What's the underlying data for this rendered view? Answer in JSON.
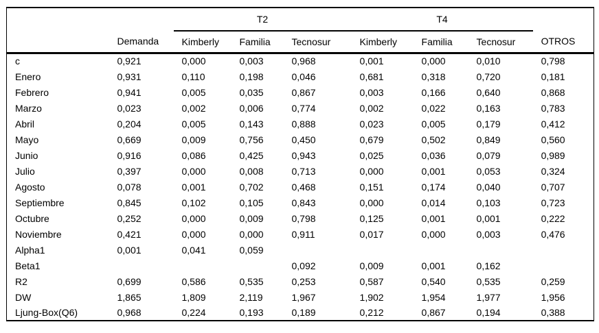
{
  "table": {
    "groups": [
      {
        "label": "T2"
      },
      {
        "label": "T4"
      }
    ],
    "columns": [
      "",
      "Demanda",
      "Kimberly",
      "Familia",
      "Tecnosur",
      "Kimberly",
      "Familia",
      "Tecnosur",
      "OTROS"
    ],
    "rows": [
      {
        "label": "c",
        "values": [
          "0,921",
          "0,000",
          "0,003",
          "0,968",
          "0,001",
          "0,000",
          "0,010",
          "0,798"
        ]
      },
      {
        "label": "Enero",
        "values": [
          "0,931",
          "0,110",
          "0,198",
          "0,046",
          "0,681",
          "0,318",
          "0,720",
          "0,181"
        ]
      },
      {
        "label": "Febrero",
        "values": [
          "0,941",
          "0,005",
          "0,035",
          "0,867",
          "0,003",
          "0,166",
          "0,640",
          "0,868"
        ]
      },
      {
        "label": "Marzo",
        "values": [
          "0,023",
          "0,002",
          "0,006",
          "0,774",
          "0,002",
          "0,022",
          "0,163",
          "0,783"
        ]
      },
      {
        "label": "Abril",
        "values": [
          "0,204",
          "0,005",
          "0,143",
          "0,888",
          "0,023",
          "0,005",
          "0,179",
          "0,412"
        ]
      },
      {
        "label": "Mayo",
        "values": [
          "0,669",
          "0,009",
          "0,756",
          "0,450",
          "0,679",
          "0,502",
          "0,849",
          "0,560"
        ]
      },
      {
        "label": "Junio",
        "values": [
          "0,916",
          "0,086",
          "0,425",
          "0,943",
          "0,025",
          "0,036",
          "0,079",
          "0,989"
        ]
      },
      {
        "label": "Julio",
        "values": [
          "0,397",
          "0,000",
          "0,008",
          "0,713",
          "0,000",
          "0,001",
          "0,053",
          "0,324"
        ]
      },
      {
        "label": "Agosto",
        "values": [
          "0,078",
          "0,001",
          "0,702",
          "0,468",
          "0,151",
          "0,174",
          "0,040",
          "0,707"
        ]
      },
      {
        "label": "Septiembre",
        "values": [
          "0,845",
          "0,102",
          "0,105",
          "0,843",
          "0,000",
          "0,014",
          "0,103",
          "0,723"
        ]
      },
      {
        "label": "Octubre",
        "values": [
          "0,252",
          "0,000",
          "0,009",
          "0,798",
          "0,125",
          "0,001",
          "0,001",
          "0,222"
        ]
      },
      {
        "label": "Noviembre",
        "values": [
          "0,421",
          "0,000",
          "0,000",
          "0,911",
          "0,017",
          "0,000",
          "0,003",
          "0,476"
        ]
      },
      {
        "label": "Alpha1",
        "values": [
          "0,001",
          "0,041",
          "0,059",
          "",
          "",
          "",
          "",
          ""
        ]
      },
      {
        "label": "Beta1",
        "values": [
          "",
          "",
          "",
          "0,092",
          "0,009",
          "0,001",
          "0,162",
          ""
        ]
      },
      {
        "label": "R2",
        "values": [
          "0,699",
          "0,586",
          "0,535",
          "0,253",
          "0,587",
          "0,540",
          "0,535",
          "0,259"
        ]
      },
      {
        "label": "DW",
        "values": [
          "1,865",
          "1,809",
          "2,119",
          "1,967",
          "1,902",
          "1,954",
          "1,977",
          "1,956"
        ]
      },
      {
        "label": "Ljung-Box(Q6)",
        "values": [
          "0,968",
          "0,224",
          "0,193",
          "0,189",
          "0,212",
          "0,867",
          "0,194",
          "0,388"
        ]
      }
    ]
  }
}
